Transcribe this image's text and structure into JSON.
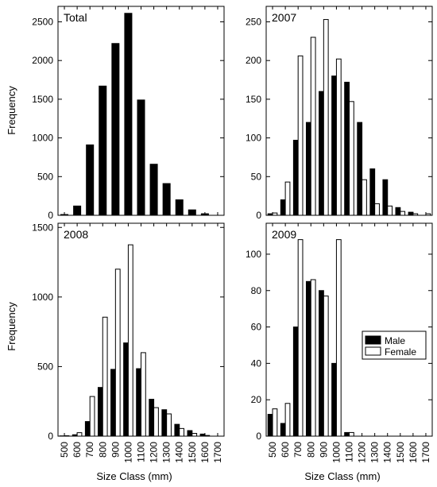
{
  "figure": {
    "ylabel": "Frequency",
    "xlabel": "Size Class (mm)",
    "legend": {
      "placement": "right",
      "items": [
        {
          "label": "Male",
          "fill": "#000000"
        },
        {
          "label": "Female",
          "fill": "#ffffff"
        }
      ]
    }
  },
  "chart_data": [
    {
      "type": "bar",
      "title": "Total",
      "x_ticks": [
        500,
        600,
        700,
        800,
        900,
        1000,
        1100,
        1200,
        1300,
        1400,
        1500,
        1600,
        1700
      ],
      "ylim": [
        0,
        2700
      ],
      "y_ticks": [
        0,
        500,
        1000,
        1500,
        2000,
        2500
      ],
      "series": [
        {
          "values": [
            10,
            120,
            910,
            1670,
            2220,
            2610,
            1490,
            660,
            410,
            200,
            70,
            20,
            0
          ]
        }
      ]
    },
    {
      "type": "bar",
      "title": "2007",
      "x_ticks": [
        500,
        600,
        700,
        800,
        900,
        1000,
        1100,
        1200,
        1300,
        1400,
        1500,
        1600,
        1700
      ],
      "ylim": [
        0,
        270
      ],
      "y_ticks": [
        0,
        50,
        100,
        150,
        200,
        250
      ],
      "series": [
        {
          "name": "Male",
          "values": [
            2,
            20,
            97,
            120,
            160,
            180,
            172,
            120,
            60,
            46,
            10,
            4,
            0
          ]
        },
        {
          "name": "Female",
          "values": [
            3,
            43,
            206,
            230,
            253,
            202,
            147,
            46,
            15,
            12,
            5,
            2,
            2
          ]
        }
      ]
    },
    {
      "type": "bar",
      "title": "2008",
      "x_ticks": [
        500,
        600,
        700,
        800,
        900,
        1000,
        1100,
        1200,
        1300,
        1400,
        1500,
        1600,
        1700
      ],
      "ylim": [
        0,
        1530
      ],
      "y_ticks": [
        0,
        500,
        1000,
        1500
      ],
      "series": [
        {
          "name": "Male",
          "values": [
            2,
            10,
            105,
            350,
            480,
            670,
            485,
            265,
            190,
            85,
            40,
            15,
            0
          ]
        },
        {
          "name": "Female",
          "values": [
            3,
            25,
            285,
            855,
            1200,
            1375,
            600,
            205,
            160,
            55,
            20,
            5,
            0
          ]
        }
      ]
    },
    {
      "type": "bar",
      "title": "2009",
      "x_ticks": [
        500,
        600,
        700,
        800,
        900,
        1000,
        1100,
        1200,
        1300,
        1400,
        1500,
        1600,
        1700
      ],
      "ylim": [
        0,
        117
      ],
      "y_ticks": [
        0,
        20,
        40,
        60,
        80,
        100
      ],
      "series": [
        {
          "name": "Male",
          "values": [
            12,
            7,
            60,
            85,
            80,
            40,
            2,
            0,
            0,
            0,
            0,
            0,
            0
          ]
        },
        {
          "name": "Female",
          "values": [
            15,
            18,
            108,
            86,
            77,
            108,
            2,
            0,
            0,
            0,
            0,
            0,
            0
          ]
        }
      ]
    }
  ]
}
